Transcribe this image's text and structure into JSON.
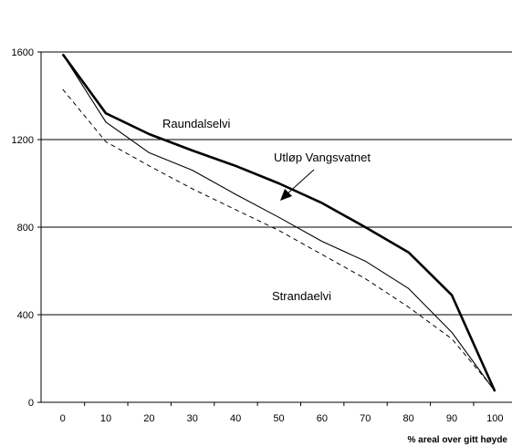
{
  "chart_data": {
    "type": "line",
    "title": "",
    "xlabel": "% areal over gitt høyde",
    "ylabel": "",
    "x": [
      0,
      10,
      20,
      30,
      40,
      50,
      60,
      70,
      80,
      90,
      100
    ],
    "xlim": [
      -5,
      105
    ],
    "ylim": [
      0,
      1600
    ],
    "x_ticks": [
      0,
      10,
      20,
      30,
      40,
      50,
      60,
      70,
      80,
      90,
      100
    ],
    "y_ticks": [
      0,
      400,
      800,
      1200,
      1600
    ],
    "grid": "horizontal",
    "series": [
      {
        "name": "Raundalselvi",
        "style": "thick",
        "values": [
          1590,
          1320,
          1225,
          1150,
          1080,
          1000,
          910,
          800,
          685,
          490,
          50
        ]
      },
      {
        "name": "Utløp Vangsvatnet",
        "style": "thin",
        "values": [
          1590,
          1280,
          1140,
          1060,
          950,
          845,
          735,
          645,
          520,
          320,
          50
        ]
      },
      {
        "name": "Strandaelvi",
        "style": "dashed",
        "values": [
          1430,
          1190,
          1080,
          975,
          880,
          785,
          675,
          565,
          435,
          290,
          55
        ]
      }
    ],
    "annotations": {
      "raundalselvi": "Raundalselvi",
      "utlop": "Utløp Vangsvatnet",
      "strandaelvi": "Strandaelvi"
    }
  }
}
